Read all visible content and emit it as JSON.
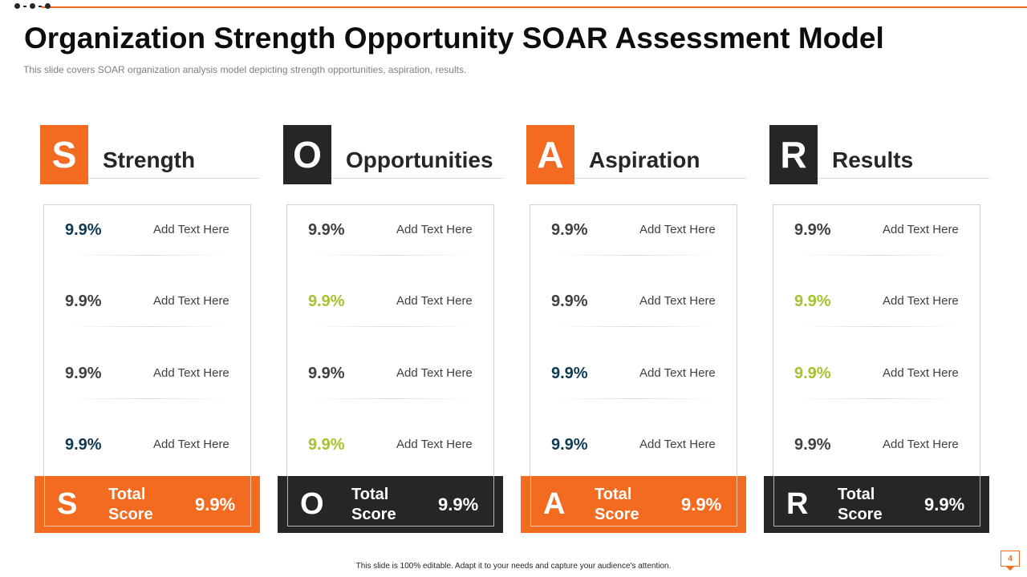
{
  "slide": {
    "title": "Organization Strength Opportunity SOAR Assessment Model",
    "subtitle": "This slide covers SOAR organization analysis model depicting strength opportunities, aspiration, results.",
    "footnote": "This slide is 100% editable. Adapt it to your needs and capture your audience's attention.",
    "page_number": "4"
  },
  "colors": {
    "orange": "#f26b21",
    "dark": "#262626",
    "navy": "#0d3a52",
    "lime": "#a5c22f",
    "gray": "#404040"
  },
  "columns": [
    {
      "letter": "S",
      "title": "Strength",
      "theme": "orange",
      "rows": [
        {
          "value": "9.9%",
          "text": "Add Text Here",
          "color": "navy"
        },
        {
          "value": "9.9%",
          "text": "Add Text Here",
          "color": "gray"
        },
        {
          "value": "9.9%",
          "text": "Add Text Here",
          "color": "gray"
        },
        {
          "value": "9.9%",
          "text": "Add Text Here",
          "color": "navy"
        }
      ],
      "total_label_1": "Total",
      "total_label_2": "Score",
      "total_value": "9.9%"
    },
    {
      "letter": "O",
      "title": "Opportunities",
      "theme": "dark",
      "rows": [
        {
          "value": "9.9%",
          "text": "Add Text Here",
          "color": "gray"
        },
        {
          "value": "9.9%",
          "text": "Add Text Here",
          "color": "lime"
        },
        {
          "value": "9.9%",
          "text": "Add Text Here",
          "color": "gray"
        },
        {
          "value": "9.9%",
          "text": "Add Text Here",
          "color": "lime"
        }
      ],
      "total_label_1": "Total",
      "total_label_2": "Score",
      "total_value": "9.9%"
    },
    {
      "letter": "A",
      "title": "Aspiration",
      "theme": "orange",
      "rows": [
        {
          "value": "9.9%",
          "text": "Add Text Here",
          "color": "gray"
        },
        {
          "value": "9.9%",
          "text": "Add Text Here",
          "color": "gray"
        },
        {
          "value": "9.9%",
          "text": "Add Text Here",
          "color": "navy"
        },
        {
          "value": "9.9%",
          "text": "Add Text Here",
          "color": "navy"
        }
      ],
      "total_label_1": "Total",
      "total_label_2": "Score",
      "total_value": "9.9%"
    },
    {
      "letter": "R",
      "title": "Results",
      "theme": "dark",
      "rows": [
        {
          "value": "9.9%",
          "text": "Add Text Here",
          "color": "gray"
        },
        {
          "value": "9.9%",
          "text": "Add Text Here",
          "color": "lime"
        },
        {
          "value": "9.9%",
          "text": "Add Text Here",
          "color": "lime"
        },
        {
          "value": "9.9%",
          "text": "Add Text Here",
          "color": "gray"
        }
      ],
      "total_label_1": "Total",
      "total_label_2": "Score",
      "total_value": "9.9%"
    }
  ]
}
